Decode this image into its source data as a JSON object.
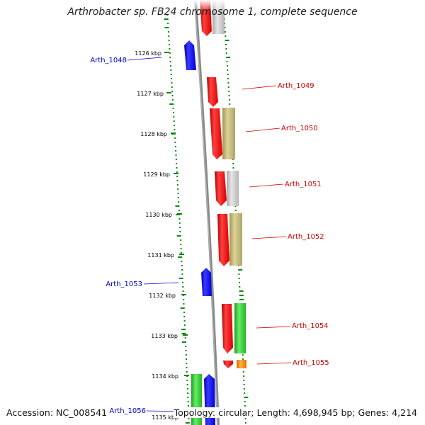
{
  "title": "Arthrobacter sp. FB24 chromosome 1, complete sequence",
  "footer": {
    "accession": "Accession: NC_008541",
    "summary": "Topology: circular; Length: 4,698,945 bp; Genes: 4,214"
  },
  "ticks": [
    "1126 kbp",
    "1127 kbp",
    "1128 kbp",
    "1129 kbp",
    "1130 kbp",
    "1131 kbp",
    "1132 kbp",
    "1133 kbp",
    "1134 kbp",
    "1135 kbp"
  ],
  "genes": [
    {
      "label": "Arth_1048",
      "strand": "minus",
      "color": "#0000cc"
    },
    {
      "label": "Arth_1049",
      "strand": "plus",
      "color": "#cc0000"
    },
    {
      "label": "Arth_1050",
      "strand": "plus",
      "color": "#cc0000"
    },
    {
      "label": "Arth_1051",
      "strand": "plus",
      "color": "#cc0000"
    },
    {
      "label": "Arth_1052",
      "strand": "plus",
      "color": "#cc0000"
    },
    {
      "label": "Arth_1053",
      "strand": "minus",
      "color": "#0000cc"
    },
    {
      "label": "Arth_1054",
      "strand": "plus",
      "color": "#cc0000"
    },
    {
      "label": "Arth_1055",
      "strand": "plus",
      "color": "#cc0000"
    },
    {
      "label": "Arth_1056",
      "strand": "minus",
      "color": "#0000cc"
    }
  ],
  "colors": {
    "cds_plus": "#ff1a1a",
    "cds_minus": "#0a0aff",
    "gene_khaki": "#c8bd78",
    "gene_gray": "#c8c8c8",
    "gene_green": "#33cc33",
    "gene_orange": "#ff8c00",
    "backbone": "#808080",
    "gc_dots": "#118811",
    "label_plus": "#cc0000",
    "label_minus": "#0000cc"
  }
}
